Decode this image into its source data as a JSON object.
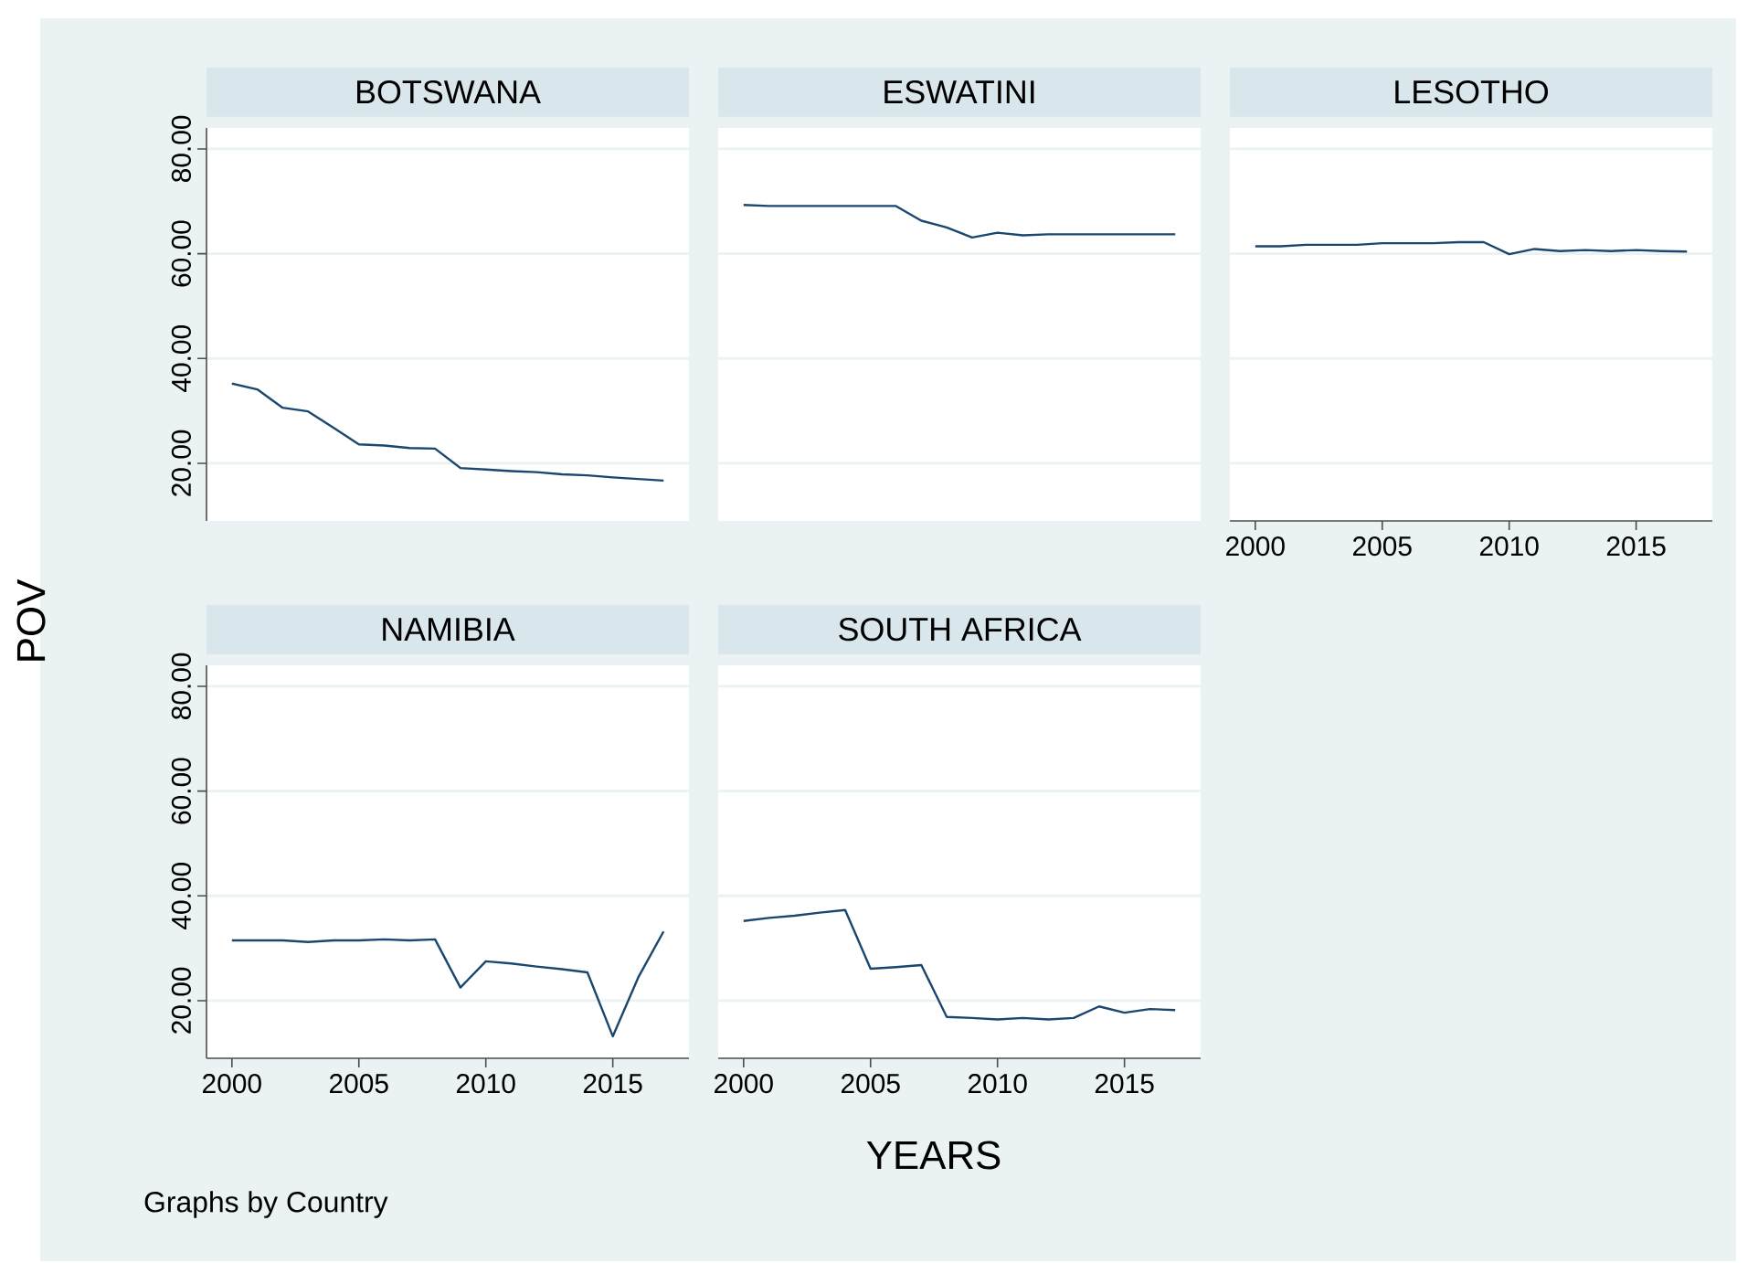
{
  "chart_data": [
    {
      "type": "line",
      "title": "BOTSWANA",
      "ylabel": "POV",
      "color": "#1a476f",
      "grid": "y",
      "tick_labels": "y",
      "xlim": [
        1999,
        2018
      ],
      "ylim": [
        9,
        84
      ],
      "xticks": [
        2000,
        2005,
        2010,
        2015
      ],
      "yticks": [
        {
          "value": 20,
          "label": "20.00"
        },
        {
          "value": 40,
          "label": "40.00"
        },
        {
          "value": 60,
          "label": "60.00"
        },
        {
          "value": 80,
          "label": "80.00"
        }
      ],
      "x": [
        2000,
        2001,
        2002,
        2003,
        2004,
        2005,
        2006,
        2007,
        2008,
        2009,
        2010,
        2011,
        2012,
        2013,
        2014,
        2015,
        2016,
        2017
      ],
      "values": [
        35.2,
        34.1,
        30.6,
        29.9,
        26.8,
        23.6,
        23.4,
        22.9,
        22.8,
        19.1,
        18.8,
        18.5,
        18.3,
        17.9,
        17.7,
        17.3,
        17.0,
        16.7
      ]
    },
    {
      "type": "line",
      "title": "ESWATINI",
      "color": "#1a476f",
      "grid": "y",
      "tick_labels": false,
      "xlim": [
        1999,
        2018
      ],
      "ylim": [
        9,
        84
      ],
      "xticks": [
        2000,
        2005,
        2010,
        2015
      ],
      "yticks": [
        {
          "value": 20,
          "label": null
        },
        {
          "value": 40,
          "label": null
        },
        {
          "value": 60,
          "label": null
        },
        {
          "value": 80,
          "label": null
        }
      ],
      "x": [
        2000,
        2001,
        2002,
        2003,
        2004,
        2005,
        2006,
        2007,
        2008,
        2009,
        2010,
        2011,
        2012,
        2013,
        2014,
        2015,
        2016,
        2017
      ],
      "values": [
        69.3,
        69.1,
        69.1,
        69.1,
        69.1,
        69.1,
        69.1,
        66.3,
        65.0,
        63.1,
        64.0,
        63.5,
        63.7,
        63.7,
        63.7,
        63.7,
        63.7,
        63.7
      ]
    },
    {
      "type": "line",
      "title": "LESOTHO",
      "color": "#1a476f",
      "grid": "y",
      "tick_labels": "x",
      "xlim": [
        1999,
        2018
      ],
      "ylim": [
        9,
        84
      ],
      "xticks": [
        2000,
        2005,
        2010,
        2015
      ],
      "yticks": [
        {
          "value": 20,
          "label": null
        },
        {
          "value": 40,
          "label": null
        },
        {
          "value": 60,
          "label": null
        },
        {
          "value": 80,
          "label": null
        }
      ],
      "x": [
        2000,
        2001,
        2002,
        2003,
        2004,
        2005,
        2006,
        2007,
        2008,
        2009,
        2010,
        2011,
        2012,
        2013,
        2014,
        2015,
        2016,
        2017
      ],
      "values": [
        61.4,
        61.4,
        61.7,
        61.7,
        61.7,
        62.0,
        62.0,
        62.0,
        62.2,
        62.2,
        59.9,
        60.9,
        60.5,
        60.7,
        60.5,
        60.7,
        60.5,
        60.4
      ]
    },
    {
      "type": "line",
      "title": "NAMIBIA",
      "color": "#1a476f",
      "grid": "y",
      "annotations": [
        "Graphs by Country"
      ],
      "xlim": [
        1999,
        2018
      ],
      "ylim": [
        9,
        84
      ],
      "xticks": [
        2000,
        2005,
        2010,
        2015
      ],
      "yticks": [
        {
          "value": 20,
          "label": "20.00"
        },
        {
          "value": 40,
          "label": "40.00"
        },
        {
          "value": 60,
          "label": "60.00"
        },
        {
          "value": 80,
          "label": "80.00"
        }
      ],
      "x": [
        2000,
        2001,
        2002,
        2003,
        2004,
        2005,
        2006,
        2007,
        2008,
        2009,
        2010,
        2011,
        2012,
        2013,
        2014,
        2015,
        2016,
        2017
      ],
      "values": [
        31.5,
        31.5,
        31.5,
        31.2,
        31.5,
        31.5,
        31.7,
        31.5,
        31.7,
        22.5,
        27.5,
        27.1,
        26.5,
        26.0,
        25.4,
        13.2,
        24.4,
        33.2
      ]
    },
    {
      "type": "line",
      "title": "SOUTH AFRICA",
      "xlabel": "YEARS",
      "color": "#1a476f",
      "grid": "y",
      "tick_labels": "x",
      "xlim": [
        1999,
        2018
      ],
      "ylim": [
        9,
        84
      ],
      "xticks": [
        2000,
        2005,
        2010,
        2015
      ],
      "yticks": [
        {
          "value": 20,
          "label": null
        },
        {
          "value": 40,
          "label": null
        },
        {
          "value": 60,
          "label": null
        },
        {
          "value": 80,
          "label": null
        }
      ],
      "x": [
        2000,
        2001,
        2002,
        2003,
        2004,
        2005,
        2006,
        2007,
        2008,
        2009,
        2010,
        2011,
        2012,
        2013,
        2014,
        2015,
        2016,
        2017
      ],
      "values": [
        35.2,
        35.8,
        36.2,
        36.8,
        37.3,
        26.1,
        26.4,
        26.8,
        16.9,
        16.7,
        16.4,
        16.7,
        16.4,
        16.7,
        18.9,
        17.7,
        18.4,
        18.2
      ]
    }
  ]
}
